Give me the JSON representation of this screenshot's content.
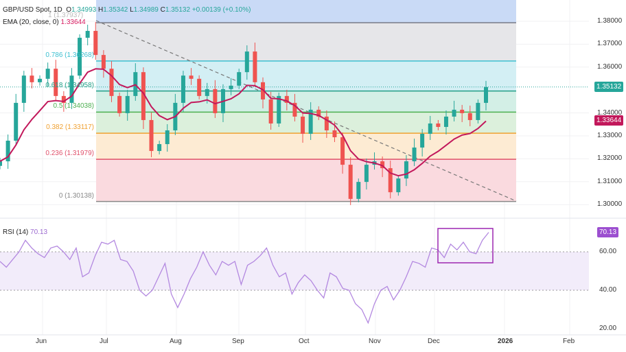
{
  "header": {
    "symbol": "GBP/USD Spot, 1D",
    "open_label": "O",
    "open": "1.34993",
    "high_label": "H",
    "high": "1.35342",
    "low_label": "L",
    "low": "1.34989",
    "close_label": "C",
    "close": "1.35132",
    "change": "+0.00139 (+0.10%)",
    "ema_label": "EMA (20, close, 0)",
    "ema_value": "1.33644"
  },
  "price_axis": {
    "ticks": [
      "1.38000",
      "1.37000",
      "1.36000",
      "1.34000",
      "1.33000",
      "1.32000",
      "1.31000",
      "1.30000"
    ],
    "tick_values": [
      1.38,
      1.37,
      1.36,
      1.34,
      1.33,
      1.32,
      1.31,
      1.3
    ],
    "last_price": "1.35132",
    "ema_tag": "1.33644",
    "last_color": "#26a69a",
    "ema_color": "#c2185b"
  },
  "fib": {
    "levels": [
      {
        "ratio": "1",
        "price": 1.37937,
        "label": "1 (1.37937)",
        "color": "#787b86",
        "fill": "#e6e6e9"
      },
      {
        "ratio": "0.786",
        "price": 1.36268,
        "label": "0.786 (1.36268)",
        "color": "#3cbfd0",
        "fill": "#d3eff4"
      },
      {
        "ratio": "0.618",
        "price": 1.34958,
        "label": "0.618 (1.34958)",
        "color": "#1f9e86",
        "fill": "#d3efe6"
      },
      {
        "ratio": "0.5",
        "price": 1.34038,
        "label": "0.5 (1.34038)",
        "color": "#4caf50",
        "fill": "#dcf0dc"
      },
      {
        "ratio": "0.382",
        "price": 1.33117,
        "label": "0.382 (1.33117)",
        "color": "#f0a030",
        "fill": "#fdebd3"
      },
      {
        "ratio": "0.236",
        "price": 1.31979,
        "label": "0.236 (1.31979)",
        "color": "#e0506a",
        "fill": "#fadadf"
      },
      {
        "ratio": "0",
        "price": 1.30138,
        "label": "0 (1.30138)",
        "color": "#888888",
        "fill": ""
      }
    ]
  },
  "time_axis": [
    "Jun",
    "Jul",
    "Aug",
    "Sep",
    "Oct",
    "Nov",
    "Dec",
    "2026",
    "Feb"
  ],
  "rsi": {
    "label": "RSI (14)",
    "value": "70.13",
    "ticks": [
      "60.00",
      "40.00",
      "20.00"
    ],
    "color": "#b388e0"
  },
  "chart_data": [
    {
      "type": "candlestick",
      "title": "GBP/USD Spot, 1D",
      "ylim": [
        1.3,
        1.38
      ],
      "up_color": "#26a69a",
      "down_color": "#ef5350",
      "ema_color": "#c2185b",
      "closes": [
        1.3189,
        1.3279,
        1.3444,
        1.3563,
        1.3534,
        1.3549,
        1.3593,
        1.3474,
        1.3444,
        1.3563,
        1.3728,
        1.3758,
        1.3653,
        1.3593,
        1.3474,
        1.3399,
        1.3474,
        1.3578,
        1.3369,
        1.3234,
        1.3264,
        1.3324,
        1.3444,
        1.3563,
        1.3549,
        1.3474,
        1.3504,
        1.3399,
        1.3504,
        1.3519,
        1.3578,
        1.3668,
        1.3534,
        1.3459,
        1.3354,
        1.3474,
        1.3444,
        1.3384,
        1.3309,
        1.3414,
        1.3384,
        1.3324,
        1.3294,
        1.3174,
        1.3025,
        1.3099,
        1.3174,
        1.3189,
        1.3159,
        1.3054,
        1.3114,
        1.3189,
        1.3249,
        1.3309,
        1.3354,
        1.3339,
        1.3384,
        1.3414,
        1.3399,
        1.3369,
        1.3444,
        1.3513
      ]
    },
    {
      "type": "line",
      "title": "RSI (14)",
      "ylim": [
        20,
        75
      ],
      "bands": [
        40,
        60
      ],
      "values": [
        55,
        52,
        56,
        60,
        66,
        62,
        59,
        57,
        62,
        63,
        60,
        56,
        62,
        47,
        49,
        58,
        65,
        64,
        66,
        56,
        55,
        50,
        40,
        37,
        40,
        47,
        54,
        38,
        31,
        38,
        46,
        52,
        60,
        53,
        48,
        55,
        53,
        55,
        43,
        53,
        55,
        58,
        62,
        53,
        47,
        49,
        38,
        44,
        48,
        45,
        40,
        36,
        49,
        47,
        41,
        40,
        33,
        30,
        23,
        33,
        40,
        42,
        35,
        40,
        47,
        55,
        54,
        52,
        62,
        61,
        57,
        64,
        61,
        65,
        60,
        59,
        66,
        70.13
      ]
    }
  ]
}
